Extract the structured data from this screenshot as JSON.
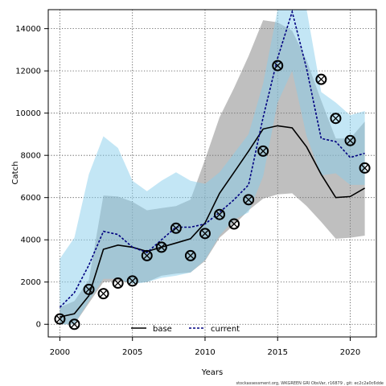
{
  "chart_data": {
    "type": "line",
    "xlabel": "Years",
    "ylabel": "Catch",
    "xlim": [
      1999.2,
      2021.8
    ],
    "ylim": [
      -600,
      14900
    ],
    "xticks": [
      2000,
      2005,
      2010,
      2015,
      2020
    ],
    "yticks": [
      0,
      2000,
      4000,
      6000,
      8000,
      10000,
      12000,
      14000
    ],
    "grid": true,
    "legend_position": "bottom-center",
    "x": [
      2000,
      2001,
      2002,
      2003,
      2004,
      2005,
      2006,
      2007,
      2008,
      2009,
      2010,
      2011,
      2012,
      2013,
      2014,
      2015,
      2016,
      2017,
      2018,
      2019,
      2020,
      2021
    ],
    "series": [
      {
        "name": "base",
        "style": "solid",
        "color": "#000000",
        "band_color": "#808080",
        "values": [
          350,
          500,
          1350,
          3550,
          3750,
          3650,
          3450,
          3650,
          3850,
          4050,
          4800,
          6200,
          7200,
          8200,
          9250,
          9400,
          9300,
          8400,
          7100,
          6000,
          6050,
          6450
        ],
        "lower": [
          0,
          0,
          1000,
          2000,
          2050,
          1950,
          2000,
          2300,
          2400,
          2450,
          3000,
          4100,
          4700,
          5400,
          5950,
          6150,
          6200,
          5600,
          4850,
          4050,
          4100,
          4200
        ],
        "upper": [
          800,
          1100,
          2100,
          6100,
          6050,
          5800,
          5400,
          5500,
          5600,
          5900,
          7800,
          9800,
          11200,
          12700,
          14400,
          14300,
          13900,
          12500,
          10600,
          8800,
          8800,
          9600
        ]
      },
      {
        "name": "current",
        "style": "dashed",
        "color": "#000080",
        "band_color": "#87ceeb",
        "values": [
          800,
          1500,
          2800,
          4400,
          4250,
          3650,
          3400,
          4000,
          4600,
          4600,
          4750,
          5300,
          5900,
          6600,
          9800,
          12600,
          14800,
          12100,
          8800,
          8650,
          7900,
          8100
        ],
        "lower": [
          0,
          0,
          1100,
          2150,
          2150,
          1900,
          2000,
          2200,
          2300,
          2450,
          3050,
          4200,
          4950,
          5300,
          7000,
          10500,
          12000,
          8900,
          7050,
          7150,
          6600,
          6600
        ],
        "upper": [
          3100,
          4100,
          7100,
          8900,
          8350,
          6800,
          6300,
          6800,
          7200,
          6800,
          6650,
          7200,
          8100,
          9000,
          11400,
          15000,
          15000,
          15000,
          11000,
          10500,
          9900,
          10100
        ]
      }
    ],
    "observations": {
      "name": "observed catch",
      "marker": "open circle with cross",
      "x": [
        2000,
        2001,
        2002,
        2003,
        2004,
        2005,
        2006,
        2007,
        2008,
        2009,
        2010,
        2011,
        2012,
        2013,
        2014,
        2015,
        2018,
        2019,
        2020,
        2021
      ],
      "y": [
        250,
        0,
        1650,
        1450,
        1950,
        2050,
        3250,
        3650,
        4550,
        3250,
        4300,
        5200,
        4750,
        5900,
        8200,
        12250,
        11600,
        9750,
        8700,
        7400
      ]
    }
  },
  "legend": {
    "base_label": "base",
    "current_label": "current"
  },
  "footer": {
    "text": "stockassessment.org,  WKGREEN  GRI ObsVar,  r16879 ,  git:  ec2c2a0c6dde"
  }
}
